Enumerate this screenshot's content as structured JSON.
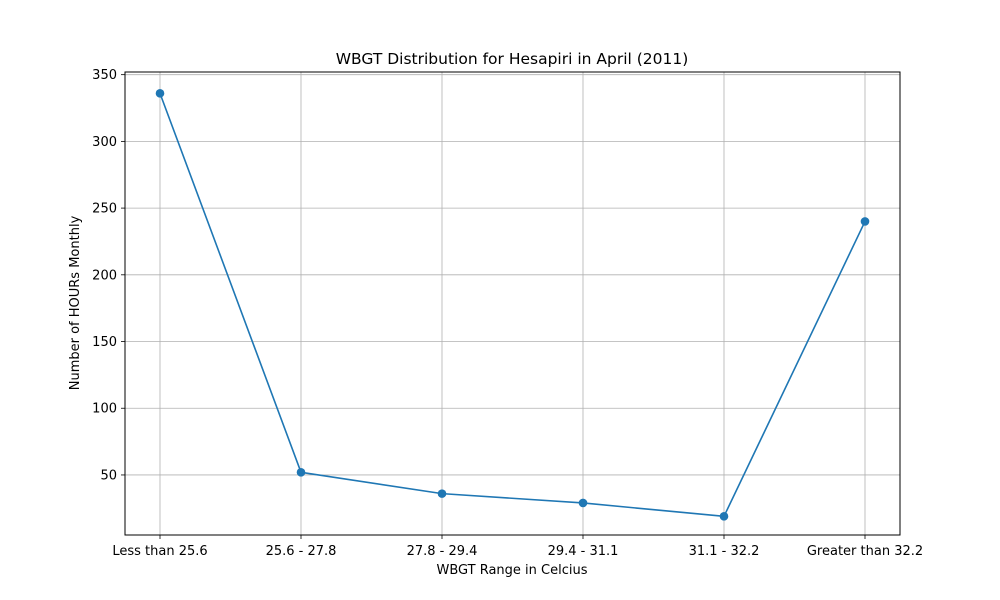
{
  "chart_data": {
    "type": "line",
    "title": "WBGT Distribution for Hesapiri in April (2011)",
    "xlabel": "WBGT Range in Celcius",
    "ylabel": "Number of HOURs Monthly",
    "categories": [
      "Less than 25.6",
      "25.6 - 27.8",
      "27.8 - 29.4",
      "29.4 - 31.1",
      "31.1 - 32.2",
      "Greater than 32.2"
    ],
    "series": [
      {
        "values": [
          336,
          52,
          36,
          29,
          19,
          240
        ],
        "color": "#1f77b4"
      }
    ],
    "ylim": [
      5,
      352
    ],
    "yticks": [
      50,
      100,
      150,
      200,
      250,
      300,
      350
    ],
    "grid": true,
    "marker": "circle"
  }
}
